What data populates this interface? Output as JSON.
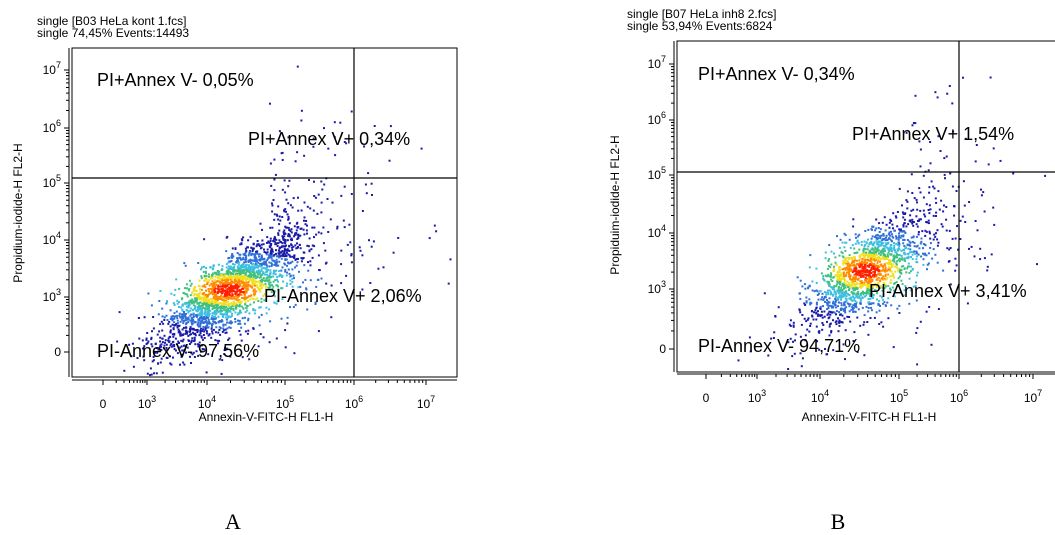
{
  "chart_data": [
    {
      "type": "scatter",
      "subtype": "flow-cytometry-density-plot",
      "panel": "A",
      "header_line1": "single [B03 HeLa kont 1.fcs]",
      "header_line2": "single  74,45% Events:14493",
      "xlabel": "Annexin-V-FITC-H FL1-H",
      "ylabel": "Propidium-iodide-H FL2-H",
      "x_ticks": [
        "0",
        "10^3",
        "10^4",
        "10^5",
        "10^6",
        "10^7"
      ],
      "y_ticks": [
        "0",
        "10^3",
        "10^4",
        "10^5",
        "10^6",
        "10^7"
      ],
      "scale": "biexponential",
      "gate_x": 500000,
      "gate_y": 100000,
      "quadrants": [
        {
          "position": "top-left",
          "label": "PI+Annex V- 0,05%",
          "percent": 0.05
        },
        {
          "position": "top-right",
          "label": "PI+Annex V+ 0,34%",
          "percent": 0.34
        },
        {
          "position": "bottom-right",
          "label": "PI-Annex V+ 2,06%",
          "percent": 2.06
        },
        {
          "position": "bottom-left",
          "label": "PI-Annex V- 97,56%",
          "percent": 97.56
        }
      ],
      "events": 14493,
      "gate_percent": 74.45
    },
    {
      "type": "scatter",
      "subtype": "flow-cytometry-density-plot",
      "panel": "B",
      "header_line1": "single [B07 HeLa inh8 2.fcs]",
      "header_line2": "single  53,94% Events:6824",
      "xlabel": "Annexin-V-FITC-H FL1-H",
      "ylabel": "Propiduim-iodide-H FL2-H",
      "x_ticks": [
        "0",
        "10^3",
        "10^4",
        "10^5",
        "10^6",
        "10^7"
      ],
      "y_ticks": [
        "0",
        "10^3",
        "10^4",
        "10^5",
        "10^6",
        "10^7"
      ],
      "scale": "biexponential",
      "gate_x": 500000,
      "gate_y": 100000,
      "quadrants": [
        {
          "position": "top-left",
          "label": "PI+Annex V- 0,34%",
          "percent": 0.34
        },
        {
          "position": "top-right",
          "label": "PI+Annex V+ 1,54%",
          "percent": 1.54
        },
        {
          "position": "bottom-right",
          "label": "PI-Annex V+ 3,41%",
          "percent": 3.41
        },
        {
          "position": "bottom-left",
          "label": "PI-Annex V- 94,71%",
          "percent": 94.71
        }
      ],
      "events": 6824,
      "gate_percent": 53.94
    }
  ],
  "density_colors": [
    "#1a1aa8",
    "#2f6fd8",
    "#3fbfe0",
    "#40c080",
    "#f0e020",
    "#ff8a00",
    "#ff2000"
  ],
  "axis_color": "#000000"
}
